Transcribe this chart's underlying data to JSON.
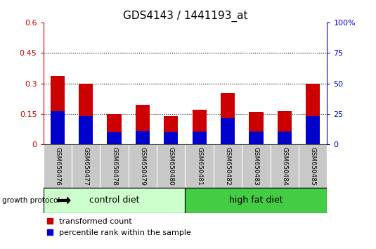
{
  "title": "GDS4143 / 1441193_at",
  "samples": [
    "GSM650476",
    "GSM650477",
    "GSM650478",
    "GSM650479",
    "GSM650480",
    "GSM650481",
    "GSM650482",
    "GSM650483",
    "GSM650484",
    "GSM650485"
  ],
  "transformed_count": [
    0.335,
    0.3,
    0.15,
    0.195,
    0.14,
    0.17,
    0.255,
    0.16,
    0.163,
    0.3
  ],
  "percentile_rank_scaled": [
    0.165,
    0.138,
    0.06,
    0.068,
    0.06,
    0.065,
    0.13,
    0.065,
    0.065,
    0.138
  ],
  "ylim_left": [
    0,
    0.6
  ],
  "ylim_right": [
    0,
    100
  ],
  "yticks_left": [
    0,
    0.15,
    0.3,
    0.45,
    0.6
  ],
  "ytick_labels_left": [
    "0",
    "0.15",
    "0.3",
    "0.45",
    "0.6"
  ],
  "yticks_right": [
    0,
    25,
    50,
    75,
    100
  ],
  "ytick_labels_right": [
    "0",
    "25",
    "50",
    "75",
    "100%"
  ],
  "hlines": [
    0.15,
    0.3,
    0.45
  ],
  "bar_color_red": "#cc0000",
  "bar_color_blue": "#0000cc",
  "bar_width": 0.5,
  "group1_label": "control diet",
  "group2_label": "high fat diet",
  "group1_color": "#ccffcc",
  "group2_color": "#44cc44",
  "group1_indices": [
    0,
    1,
    2,
    3,
    4
  ],
  "group2_indices": [
    5,
    6,
    7,
    8,
    9
  ],
  "protocol_label": "growth protocol",
  "legend1_label": "transformed count",
  "legend2_label": "percentile rank within the sample",
  "bar_color_left": "#cc0000",
  "bar_color_right": "#0000cc",
  "bg_color": "#ffffff",
  "tick_area_color": "#c8c8c8",
  "title_fontsize": 11,
  "tick_fontsize": 8,
  "group_label_fontsize": 9,
  "legend_fontsize": 8
}
